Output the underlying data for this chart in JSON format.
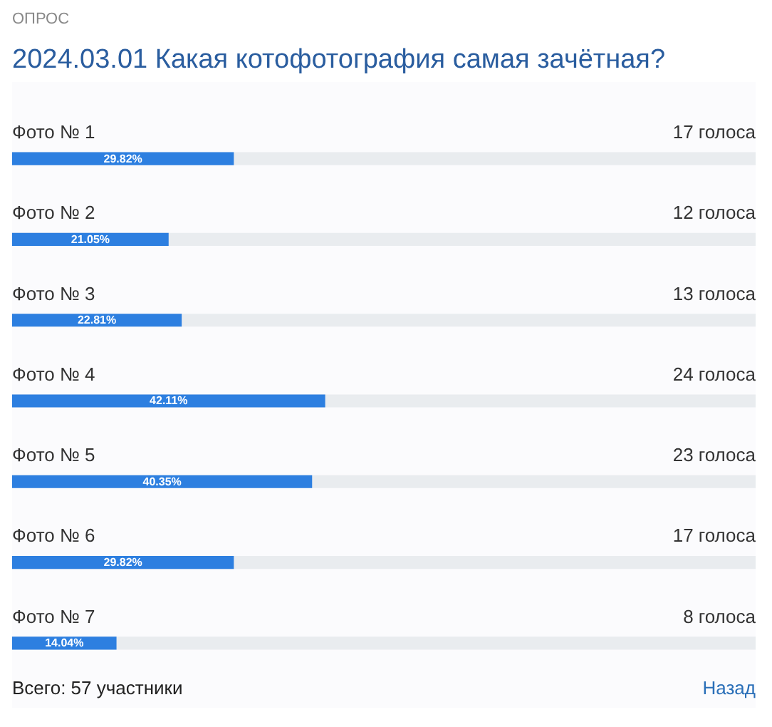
{
  "chart_data": {
    "type": "bar",
    "orientation": "horizontal",
    "title": "2024.03.01 Какая котофотография самая зачётная?",
    "categories": [
      "Фото № 1",
      "Фото № 2",
      "Фото № 3",
      "Фото № 4",
      "Фото № 5",
      "Фото № 6",
      "Фото № 7"
    ],
    "values": [
      29.82,
      21.05,
      22.81,
      42.11,
      40.35,
      29.82,
      14.04
    ],
    "value_labels": [
      "29.82%",
      "21.05%",
      "22.81%",
      "42.11%",
      "40.35%",
      "29.82%",
      "14.04%"
    ],
    "color": "#2d7fe0",
    "xlim": [
      0,
      100
    ],
    "tick_labels": false,
    "grid": false,
    "annotations": [
      "ОПРОС",
      "Всего: 57 участники",
      "Назад",
      "17 голоса",
      "12 голоса",
      "13 голоса",
      "24 голоса",
      "23 голоса",
      "17 голоса",
      "8 голоса"
    ]
  }
}
